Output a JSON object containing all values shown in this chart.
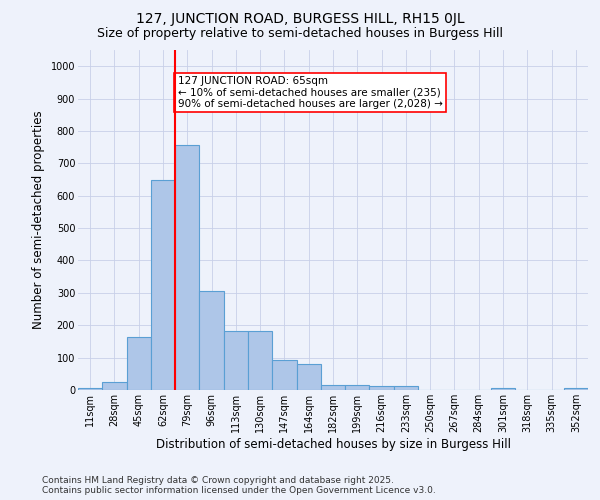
{
  "title1": "127, JUNCTION ROAD, BURGESS HILL, RH15 0JL",
  "title2": "Size of property relative to semi-detached houses in Burgess Hill",
  "xlabel": "Distribution of semi-detached houses by size in Burgess Hill",
  "ylabel": "Number of semi-detached properties",
  "bin_labels": [
    "11sqm",
    "28sqm",
    "45sqm",
    "62sqm",
    "79sqm",
    "96sqm",
    "113sqm",
    "130sqm",
    "147sqm",
    "164sqm",
    "182sqm",
    "199sqm",
    "216sqm",
    "233sqm",
    "250sqm",
    "267sqm",
    "284sqm",
    "301sqm",
    "318sqm",
    "335sqm",
    "352sqm"
  ],
  "bar_values": [
    7,
    25,
    165,
    648,
    758,
    305,
    183,
    183,
    92,
    80,
    15,
    15,
    12,
    12,
    0,
    0,
    0,
    7,
    0,
    0,
    7
  ],
  "bar_color": "#aec6e8",
  "bar_edge_color": "#5a9fd4",
  "vline_x": 3.5,
  "vline_color": "red",
  "annotation_text": "127 JUNCTION ROAD: 65sqm\n← 10% of semi-detached houses are smaller (235)\n90% of semi-detached houses are larger (2,028) →",
  "annotation_box_color": "white",
  "annotation_box_edge_color": "red",
  "ylim": [
    0,
    1050
  ],
  "yticks": [
    0,
    100,
    200,
    300,
    400,
    500,
    600,
    700,
    800,
    900,
    1000
  ],
  "footer1": "Contains HM Land Registry data © Crown copyright and database right 2025.",
  "footer2": "Contains public sector information licensed under the Open Government Licence v3.0.",
  "bg_color": "#eef2fb",
  "grid_color": "#c8d0e8",
  "title_fontsize": 10,
  "subtitle_fontsize": 9,
  "axis_label_fontsize": 8.5,
  "tick_fontsize": 7,
  "annotation_fontsize": 7.5,
  "footer_fontsize": 6.5
}
